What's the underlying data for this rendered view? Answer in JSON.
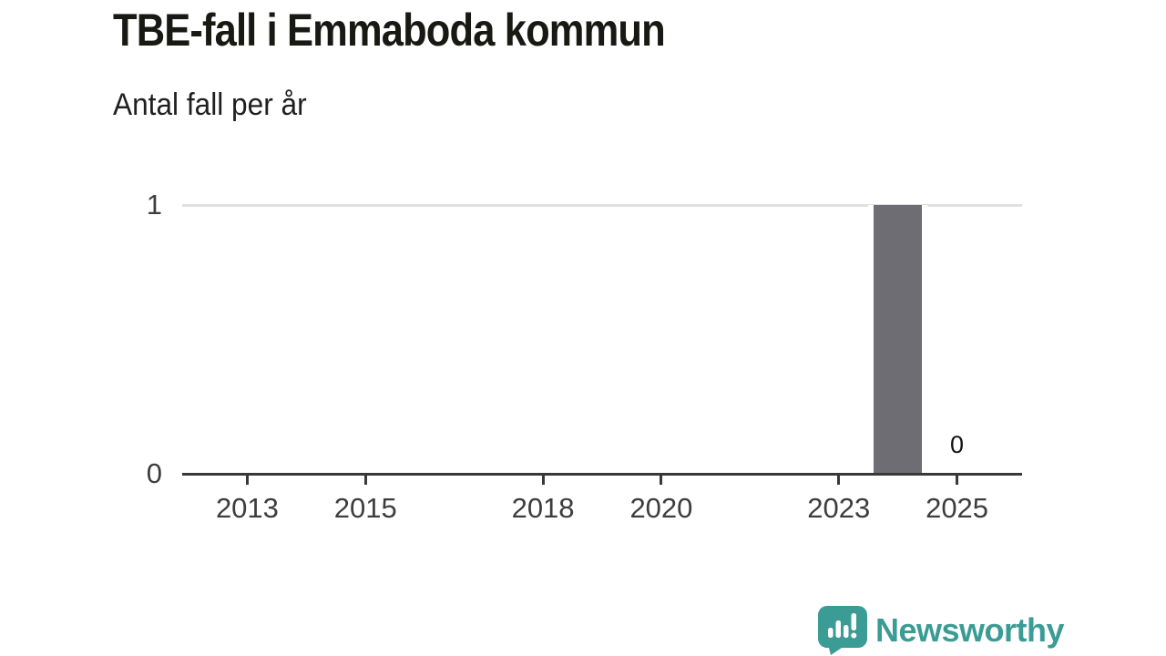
{
  "header": {
    "title": "TBE-fall i Emmaboda kommun",
    "subtitle": "Antal fall per år"
  },
  "chart_data": {
    "type": "bar",
    "title": "TBE-fall i Emmaboda kommun",
    "subtitle": "Antal fall per år",
    "x": [
      2012,
      2013,
      2014,
      2015,
      2016,
      2017,
      2018,
      2019,
      2020,
      2021,
      2022,
      2023,
      2024,
      2025
    ],
    "values": [
      0,
      0,
      0,
      0,
      0,
      0,
      0,
      0,
      0,
      0,
      0,
      0,
      1,
      0
    ],
    "xlabel": "",
    "ylabel": "",
    "xlim": [
      2011.9,
      2026.1
    ],
    "ylim": [
      0,
      1
    ],
    "x_ticks": [
      2013,
      2015,
      2018,
      2020,
      2023,
      2025
    ],
    "x_tick_labels": [
      "2013",
      "2015",
      "2018",
      "2020",
      "2023",
      "2025"
    ],
    "y_ticks": [
      0,
      1
    ],
    "y_tick_labels": [
      "0",
      "1"
    ],
    "grid": "horizontal-at-1",
    "legend": "none",
    "last_value_label": {
      "year": 2025,
      "text": "0"
    },
    "colors": {
      "bar": "#6d6d73",
      "gridline": "#e0e0e0",
      "axis_line": "#383838",
      "tick_text": "#3d3d3d",
      "title_text": "#191914",
      "value_label_text": "#141414"
    }
  },
  "footer": {
    "brand": "Newsworthy",
    "brand_color": "#3a9c95",
    "logo_icon": "newsworthy-speech-bubble-bar-chart-icon"
  }
}
